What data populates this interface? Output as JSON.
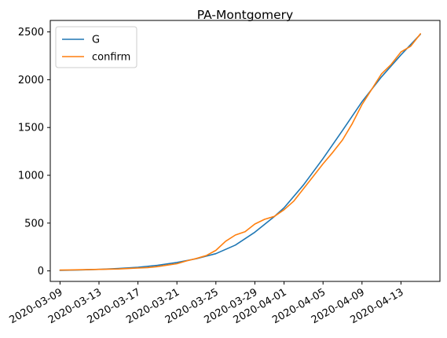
{
  "chart_data": {
    "type": "line",
    "title": "PA-Montgomery",
    "xlabel": "",
    "ylabel": "",
    "x_range": [
      "2020-03-08",
      "2020-04-17"
    ],
    "ylim": [
      -110,
      2620
    ],
    "grid": false,
    "legend_position": "top-left",
    "x_ticks": [
      "2020-03-09",
      "2020-03-13",
      "2020-03-17",
      "2020-03-21",
      "2020-03-25",
      "2020-03-29",
      "2020-04-01",
      "2020-04-05",
      "2020-04-09",
      "2020-04-13"
    ],
    "y_ticks": [
      0,
      500,
      1000,
      1500,
      2000,
      2500
    ],
    "series": [
      {
        "name": "G",
        "color": "#1f77b4",
        "points": [
          [
            "2020-03-09",
            5
          ],
          [
            "2020-03-11",
            10
          ],
          [
            "2020-03-13",
            16
          ],
          [
            "2020-03-15",
            25
          ],
          [
            "2020-03-17",
            38
          ],
          [
            "2020-03-19",
            58
          ],
          [
            "2020-03-21",
            88
          ],
          [
            "2020-03-23",
            128
          ],
          [
            "2020-03-25",
            180
          ],
          [
            "2020-03-27",
            270
          ],
          [
            "2020-03-29",
            405
          ],
          [
            "2020-03-31",
            568
          ],
          [
            "2020-04-01",
            660
          ],
          [
            "2020-04-03",
            900
          ],
          [
            "2020-04-05",
            1175
          ],
          [
            "2020-04-07",
            1470
          ],
          [
            "2020-04-09",
            1770
          ],
          [
            "2020-04-11",
            2030
          ],
          [
            "2020-04-13",
            2260
          ],
          [
            "2020-04-15",
            2475
          ]
        ]
      },
      {
        "name": "confirm",
        "color": "#ff7f0e",
        "points": [
          [
            "2020-03-09",
            8
          ],
          [
            "2020-03-10",
            10
          ],
          [
            "2020-03-11",
            12
          ],
          [
            "2020-03-12",
            14
          ],
          [
            "2020-03-13",
            16
          ],
          [
            "2020-03-14",
            18
          ],
          [
            "2020-03-15",
            20
          ],
          [
            "2020-03-16",
            25
          ],
          [
            "2020-03-17",
            30
          ],
          [
            "2020-03-18",
            35
          ],
          [
            "2020-03-19",
            45
          ],
          [
            "2020-03-20",
            60
          ],
          [
            "2020-03-21",
            75
          ],
          [
            "2020-03-22",
            105
          ],
          [
            "2020-03-23",
            130
          ],
          [
            "2020-03-24",
            160
          ],
          [
            "2020-03-25",
            215
          ],
          [
            "2020-03-26",
            310
          ],
          [
            "2020-03-27",
            375
          ],
          [
            "2020-03-28",
            410
          ],
          [
            "2020-03-29",
            490
          ],
          [
            "2020-03-30",
            540
          ],
          [
            "2020-03-31",
            570
          ],
          [
            "2020-04-01",
            640
          ],
          [
            "2020-04-02",
            730
          ],
          [
            "2020-04-03",
            860
          ],
          [
            "2020-04-04",
            990
          ],
          [
            "2020-04-05",
            1120
          ],
          [
            "2020-04-06",
            1240
          ],
          [
            "2020-04-07",
            1370
          ],
          [
            "2020-04-08",
            1540
          ],
          [
            "2020-04-09",
            1740
          ],
          [
            "2020-04-10",
            1900
          ],
          [
            "2020-04-11",
            2060
          ],
          [
            "2020-04-12",
            2160
          ],
          [
            "2020-04-13",
            2290
          ],
          [
            "2020-04-14",
            2350
          ],
          [
            "2020-04-15",
            2480
          ]
        ]
      }
    ]
  }
}
